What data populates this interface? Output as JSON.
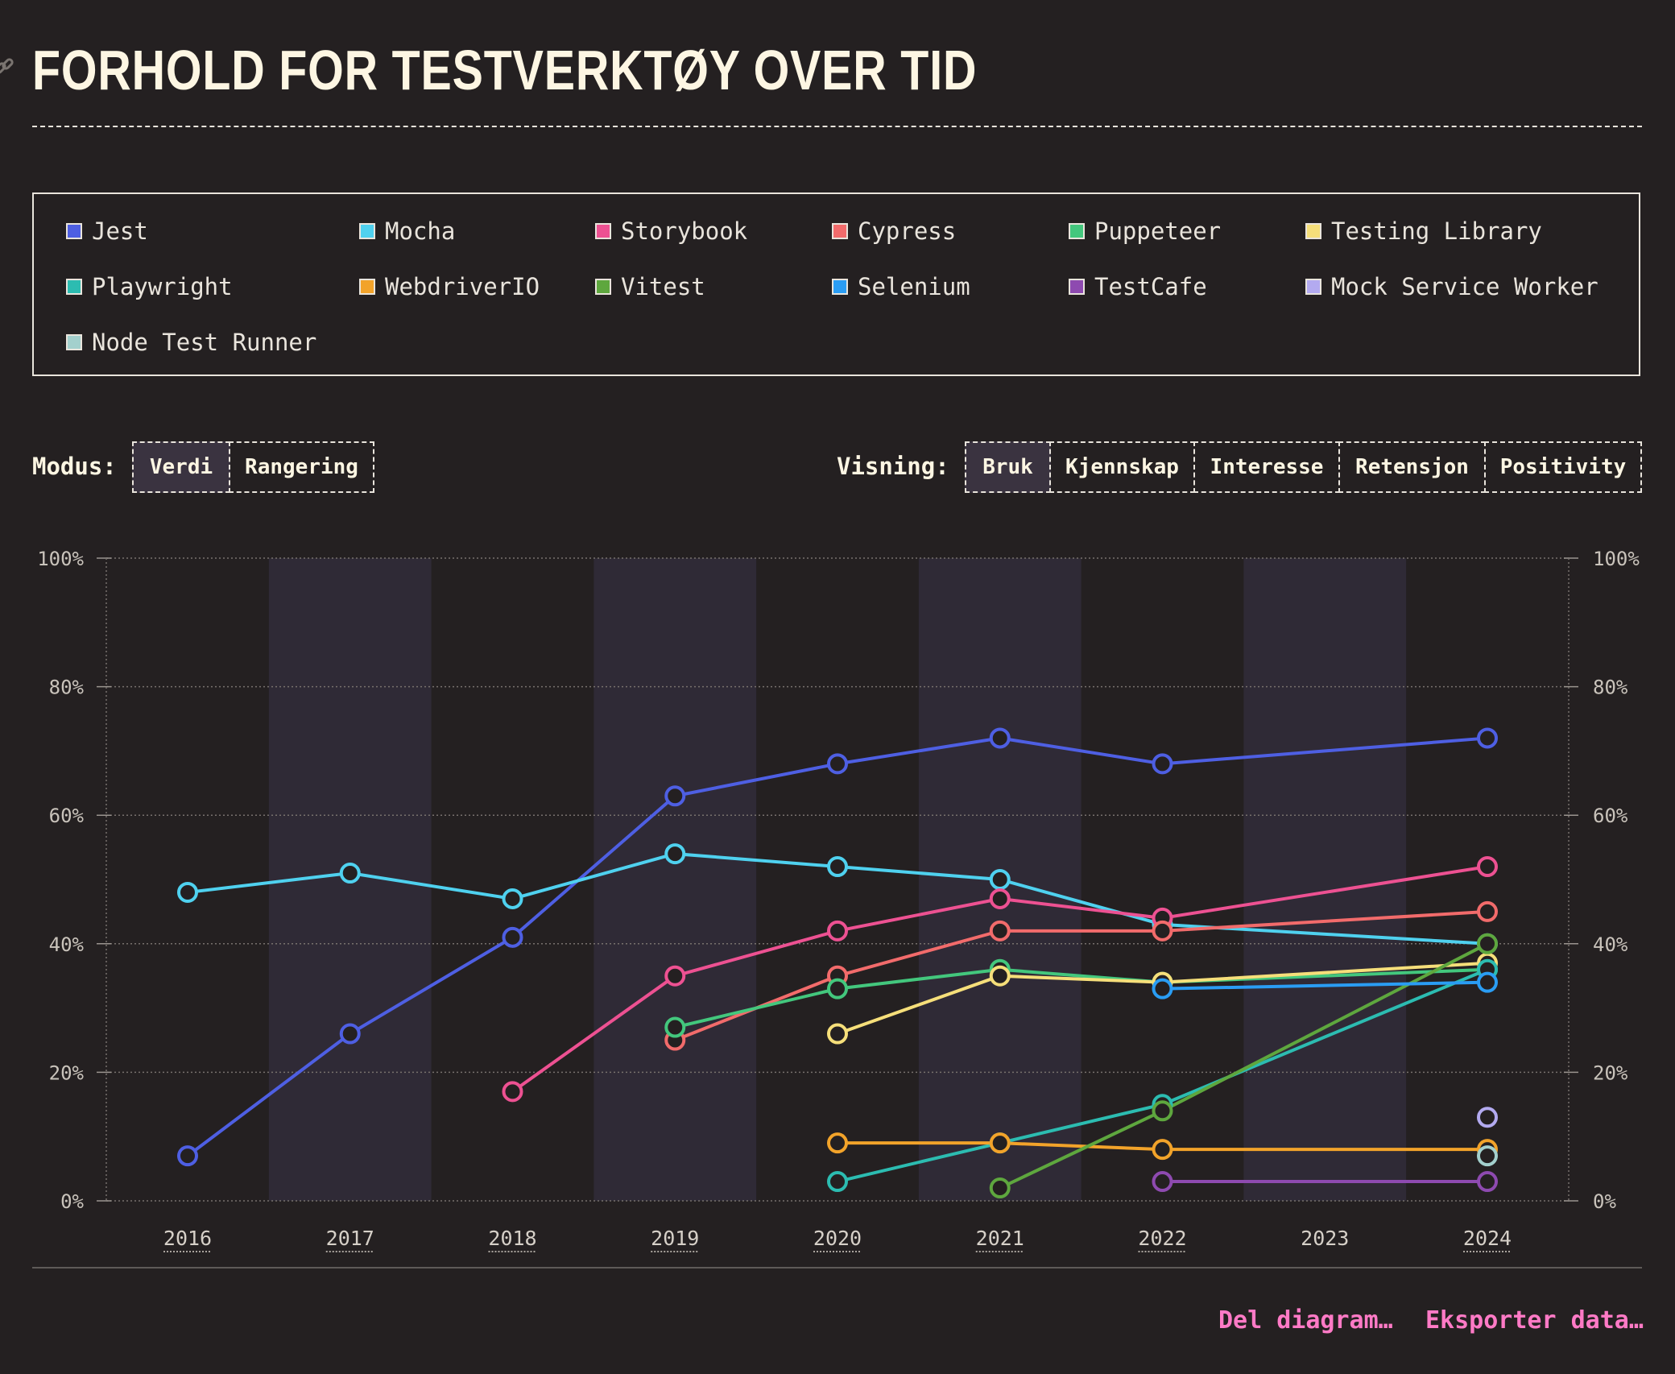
{
  "title": "FORHOLD FOR TESTVERKTØY OVER TID",
  "legend": [
    {
      "name": "Jest",
      "color": "#4e5fe3"
    },
    {
      "name": "Mocha",
      "color": "#4fd1ef"
    },
    {
      "name": "Storybook",
      "color": "#ed5192"
    },
    {
      "name": "Cypress",
      "color": "#f26b6b"
    },
    {
      "name": "Puppeteer",
      "color": "#43c77d"
    },
    {
      "name": "Testing Library",
      "color": "#f6df7a"
    },
    {
      "name": "Playwright",
      "color": "#2cbcb1"
    },
    {
      "name": "WebdriverIO",
      "color": "#f2a32a"
    },
    {
      "name": "Vitest",
      "color": "#5ea73e"
    },
    {
      "name": "Selenium",
      "color": "#2a9df4"
    },
    {
      "name": "TestCafe",
      "color": "#8e4ab0"
    },
    {
      "name": "Mock Service Worker",
      "color": "#b3aaf0"
    },
    {
      "name": "Node Test Runner",
      "color": "#a3d0cd"
    }
  ],
  "controls": {
    "mode_label": "Modus:",
    "mode_options": [
      "Verdi",
      "Rangering"
    ],
    "mode_active": "Verdi",
    "view_label": "Visning:",
    "view_options": [
      "Bruk",
      "Kjennskap",
      "Interesse",
      "Retensjon",
      "Positivity"
    ],
    "view_active": "Bruk"
  },
  "footer": {
    "share": "Del diagram…",
    "export": "Eksporter data…"
  },
  "chart_data": {
    "type": "line",
    "x": [
      "2016",
      "2017",
      "2018",
      "2019",
      "2020",
      "2021",
      "2022",
      "2023",
      "2024"
    ],
    "ylim": [
      0,
      100
    ],
    "yticks": [
      "0%",
      "20%",
      "40%",
      "60%",
      "80%",
      "100%"
    ],
    "grid": true,
    "series": [
      {
        "name": "Jest",
        "color": "#4e5fe3",
        "points": [
          [
            "2016",
            7
          ],
          [
            "2017",
            26
          ],
          [
            "2018",
            41
          ],
          [
            "2019",
            63
          ],
          [
            "2020",
            68
          ],
          [
            "2021",
            72
          ],
          [
            "2022",
            68
          ],
          [
            "2024",
            72
          ]
        ]
      },
      {
        "name": "Mocha",
        "color": "#4fd1ef",
        "points": [
          [
            "2016",
            48
          ],
          [
            "2017",
            51
          ],
          [
            "2018",
            47
          ],
          [
            "2019",
            54
          ],
          [
            "2020",
            52
          ],
          [
            "2021",
            50
          ],
          [
            "2022",
            43
          ],
          [
            "2024",
            40
          ]
        ]
      },
      {
        "name": "Storybook",
        "color": "#ed5192",
        "points": [
          [
            "2018",
            17
          ],
          [
            "2019",
            35
          ],
          [
            "2020",
            42
          ],
          [
            "2021",
            47
          ],
          [
            "2022",
            44
          ],
          [
            "2024",
            52
          ]
        ]
      },
      {
        "name": "Cypress",
        "color": "#f26b6b",
        "points": [
          [
            "2019",
            25
          ],
          [
            "2020",
            35
          ],
          [
            "2021",
            42
          ],
          [
            "2022",
            42
          ],
          [
            "2024",
            45
          ]
        ]
      },
      {
        "name": "Puppeteer",
        "color": "#43c77d",
        "points": [
          [
            "2019",
            27
          ],
          [
            "2020",
            33
          ],
          [
            "2021",
            36
          ],
          [
            "2022",
            34
          ],
          [
            "2024",
            36
          ]
        ]
      },
      {
        "name": "Testing Library",
        "color": "#f6df7a",
        "points": [
          [
            "2020",
            26
          ],
          [
            "2021",
            35
          ],
          [
            "2022",
            34
          ],
          [
            "2024",
            37
          ]
        ]
      },
      {
        "name": "Playwright",
        "color": "#2cbcb1",
        "points": [
          [
            "2020",
            3
          ],
          [
            "2021",
            9
          ],
          [
            "2022",
            15
          ],
          [
            "2024",
            36
          ]
        ]
      },
      {
        "name": "WebdriverIO",
        "color": "#f2a32a",
        "points": [
          [
            "2020",
            9
          ],
          [
            "2021",
            9
          ],
          [
            "2022",
            8
          ],
          [
            "2024",
            8
          ]
        ]
      },
      {
        "name": "Vitest",
        "color": "#5ea73e",
        "points": [
          [
            "2021",
            2
          ],
          [
            "2022",
            14
          ],
          [
            "2024",
            40
          ]
        ]
      },
      {
        "name": "Selenium",
        "color": "#2a9df4",
        "points": [
          [
            "2022",
            33
          ],
          [
            "2024",
            34
          ]
        ]
      },
      {
        "name": "TestCafe",
        "color": "#8e4ab0",
        "points": [
          [
            "2022",
            3
          ],
          [
            "2024",
            3
          ]
        ]
      },
      {
        "name": "Mock Service Worker",
        "color": "#b3aaf0",
        "points": [
          [
            "2024",
            13
          ]
        ]
      },
      {
        "name": "Node Test Runner",
        "color": "#a3d0cd",
        "points": [
          [
            "2024",
            7
          ]
        ]
      }
    ]
  }
}
